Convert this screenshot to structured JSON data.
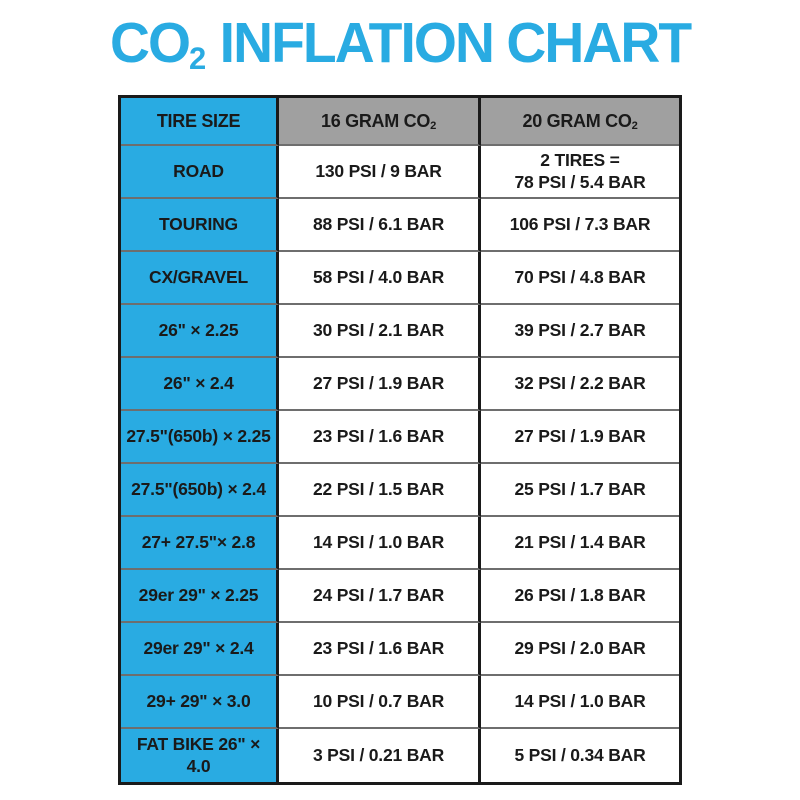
{
  "title": {
    "pre": "CO",
    "sub": "2",
    "post": " INFLATION CHART"
  },
  "header": {
    "col1": {
      "pre": "TIRE SIZE",
      "sub": ""
    },
    "col2": {
      "pre": "16 GRAM CO",
      "sub": "2"
    },
    "col3": {
      "pre": "20 GRAM CO",
      "sub": "2"
    }
  },
  "colors": {
    "accent_blue": "#29abe2",
    "header_gray": "#a0a0a0",
    "border_dark": "#1a1a1a",
    "row_divider": "#6e6e6e",
    "text": "#1a1a1a",
    "background": "#ffffff"
  },
  "chart_data": {
    "type": "table",
    "title": "CO2 INFLATION CHART",
    "columns": [
      "TIRE SIZE",
      "16 GRAM CO2",
      "20 GRAM CO2"
    ],
    "rows": [
      {
        "tire_size": "ROAD",
        "psi_16g": "130 PSI / 9 BAR",
        "psi_20g": "2 TIRES =\n78 PSI / 5.4 BAR"
      },
      {
        "tire_size": "TOURING",
        "psi_16g": "88 PSI / 6.1 BAR",
        "psi_20g": "106 PSI / 7.3 BAR"
      },
      {
        "tire_size": "CX/GRAVEL",
        "psi_16g": "58 PSI / 4.0 BAR",
        "psi_20g": "70 PSI / 4.8 BAR"
      },
      {
        "tire_size": "26\" × 2.25",
        "psi_16g": "30 PSI / 2.1 BAR",
        "psi_20g": "39 PSI / 2.7 BAR"
      },
      {
        "tire_size": "26\" × 2.4",
        "psi_16g": "27 PSI / 1.9 BAR",
        "psi_20g": "32 PSI / 2.2 BAR"
      },
      {
        "tire_size": "27.5\"(650b) × 2.25",
        "psi_16g": "23 PSI / 1.6 BAR",
        "psi_20g": "27 PSI / 1.9 BAR"
      },
      {
        "tire_size": "27.5\"(650b) × 2.4",
        "psi_16g": "22 PSI / 1.5 BAR",
        "psi_20g": "25 PSI / 1.7 BAR"
      },
      {
        "tire_size": "27+ 27.5\"× 2.8",
        "psi_16g": "14 PSI / 1.0 BAR",
        "psi_20g": "21 PSI / 1.4 BAR"
      },
      {
        "tire_size": "29er 29\" × 2.25",
        "psi_16g": "24 PSI / 1.7 BAR",
        "psi_20g": "26 PSI / 1.8 BAR"
      },
      {
        "tire_size": "29er 29\" × 2.4",
        "psi_16g": "23 PSI / 1.6 BAR",
        "psi_20g": "29 PSI / 2.0 BAR"
      },
      {
        "tire_size": "29+ 29\" × 3.0",
        "psi_16g": "10 PSI / 0.7 BAR",
        "psi_20g": "14 PSI / 1.0 BAR"
      },
      {
        "tire_size": "FAT BIKE 26\" × 4.0",
        "psi_16g": "3 PSI / 0.21 BAR",
        "psi_20g": "5 PSI / 0.34 BAR"
      }
    ]
  }
}
